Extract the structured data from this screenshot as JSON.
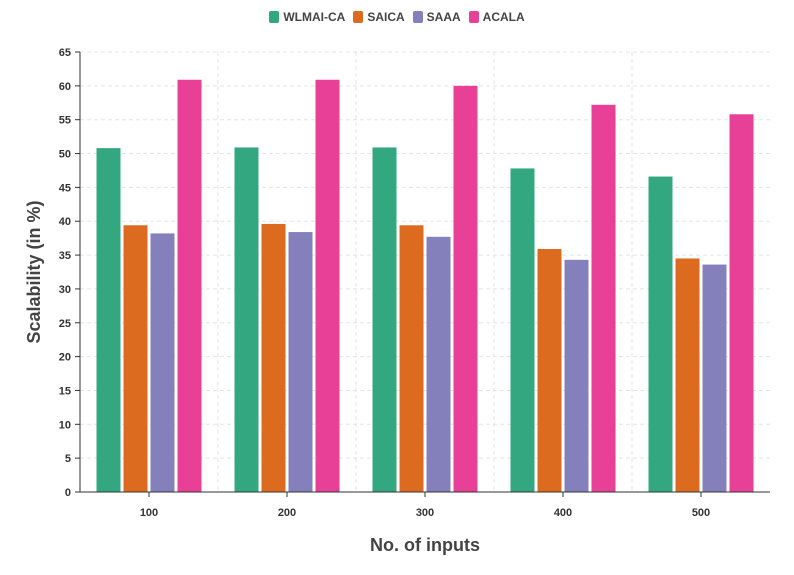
{
  "chart_data": {
    "type": "bar",
    "title": "",
    "xlabel": "No. of inputs",
    "ylabel": "Scalability (in %)",
    "categories": [
      "100",
      "200",
      "300",
      "400",
      "500"
    ],
    "ylim": [
      0,
      65
    ],
    "yticks": [
      0,
      5,
      10,
      15,
      20,
      25,
      30,
      35,
      40,
      45,
      50,
      55,
      60,
      65
    ],
    "grid": true,
    "legend_position": "top-center",
    "series": [
      {
        "name": "WLMAI-CA",
        "color": "#33a880",
        "values": [
          50.8,
          50.9,
          50.9,
          47.8,
          46.6
        ]
      },
      {
        "name": "SAICA",
        "color": "#dd6b1f",
        "values": [
          39.4,
          39.6,
          39.4,
          35.9,
          34.5
        ]
      },
      {
        "name": "SAAA",
        "color": "#8480bb",
        "values": [
          38.2,
          38.4,
          37.7,
          34.3,
          33.6
        ]
      },
      {
        "name": "ACALA",
        "color": "#e83f97",
        "values": [
          60.9,
          60.9,
          60.0,
          57.2,
          55.8
        ]
      }
    ]
  }
}
